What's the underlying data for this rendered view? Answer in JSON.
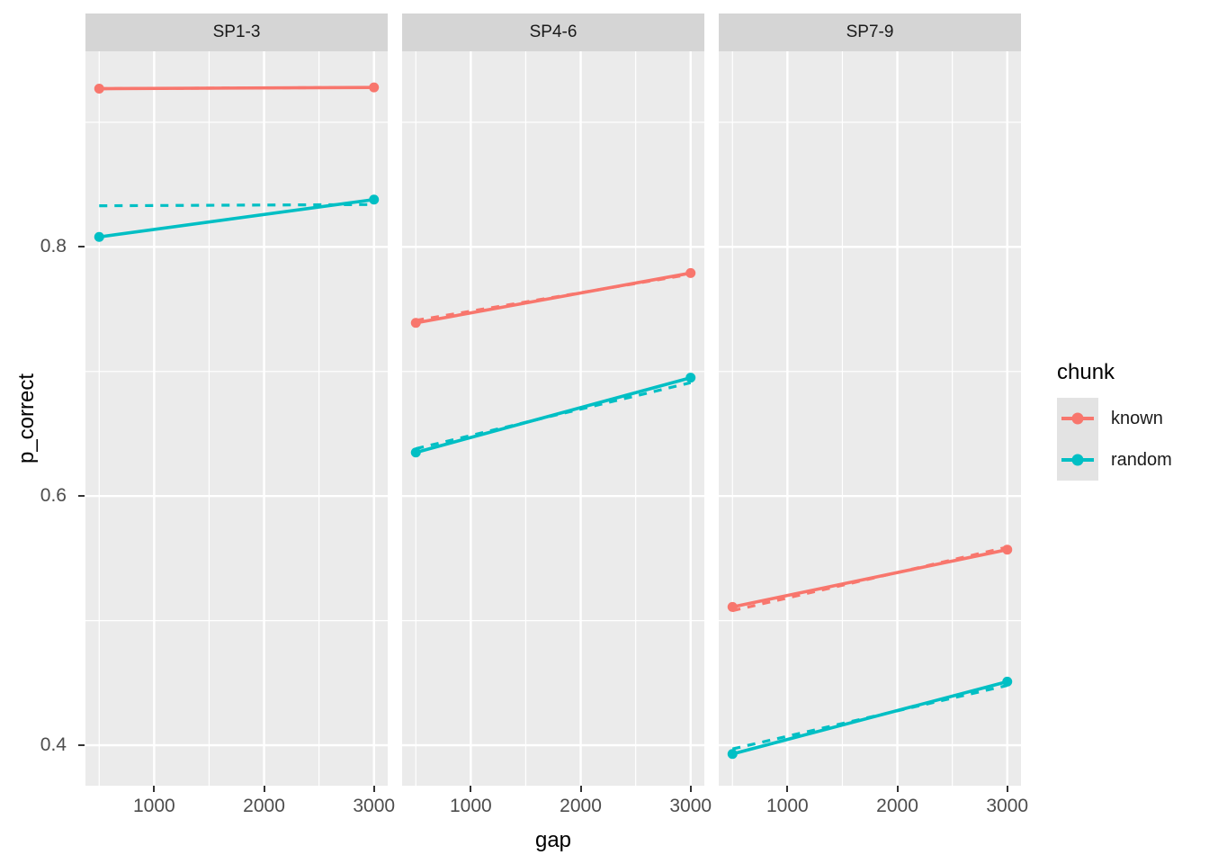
{
  "chart_data": {
    "type": "line",
    "title": "",
    "xlabel": "gap",
    "ylabel": "p_correct",
    "xlim": [
      375,
      3125
    ],
    "ylim": [
      0.3675,
      0.957
    ],
    "grid": true,
    "x_ticks": [
      {
        "value": 1000,
        "label": "1000"
      },
      {
        "value": 2000,
        "label": "2000"
      },
      {
        "value": 3000,
        "label": "3000"
      }
    ],
    "x_minor_ticks": [
      500,
      1500,
      2500
    ],
    "y_ticks": [
      {
        "value": 0.8,
        "label": "0.8"
      },
      {
        "value": 0.6,
        "label": "0.6"
      },
      {
        "value": 0.4,
        "label": "0.4"
      }
    ],
    "y_minor_ticks": [
      0.9,
      0.7,
      0.5
    ],
    "legend": {
      "title": "chunk",
      "position": "right",
      "entries": [
        {
          "label": "known",
          "color": "#F8766D"
        },
        {
          "label": "random",
          "color": "#00BFC4"
        }
      ]
    },
    "facets": [
      {
        "label": "SP1-3",
        "series": [
          {
            "name": "known",
            "color": "#F8766D",
            "observed": [
              [
                500,
                0.927
              ],
              [
                3000,
                0.928
              ]
            ],
            "fitted": [
              [
                500,
                0.927
              ],
              [
                3000,
                0.928
              ]
            ]
          },
          {
            "name": "random",
            "color": "#00BFC4",
            "observed": [
              [
                500,
                0.808
              ],
              [
                3000,
                0.838
              ]
            ],
            "fitted": [
              [
                500,
                0.833
              ],
              [
                3000,
                0.834
              ]
            ]
          }
        ]
      },
      {
        "label": "SP4-6",
        "series": [
          {
            "name": "known",
            "color": "#F8766D",
            "observed": [
              [
                500,
                0.739
              ],
              [
                3000,
                0.779
              ]
            ],
            "fitted": [
              [
                500,
                0.741
              ],
              [
                3000,
                0.778
              ]
            ]
          },
          {
            "name": "random",
            "color": "#00BFC4",
            "observed": [
              [
                500,
                0.635
              ],
              [
                3000,
                0.695
              ]
            ],
            "fitted": [
              [
                500,
                0.638
              ],
              [
                3000,
                0.691
              ]
            ]
          }
        ]
      },
      {
        "label": "SP7-9",
        "series": [
          {
            "name": "known",
            "color": "#F8766D",
            "observed": [
              [
                500,
                0.511
              ],
              [
                3000,
                0.557
              ]
            ],
            "fitted": [
              [
                500,
                0.508
              ],
              [
                3000,
                0.559
              ]
            ]
          },
          {
            "name": "random",
            "color": "#00BFC4",
            "observed": [
              [
                500,
                0.393
              ],
              [
                3000,
                0.451
              ]
            ],
            "fitted": [
              [
                500,
                0.397
              ],
              [
                3000,
                0.448
              ]
            ]
          }
        ]
      }
    ],
    "style": {
      "panel_bg": "#EBEBEB",
      "strip_bg": "#D5D5D5",
      "grid_color": "#FFFFFF",
      "known_color": "#F8766D",
      "random_color": "#00BFC4",
      "tick_label_color": "#4D4D4D"
    }
  }
}
